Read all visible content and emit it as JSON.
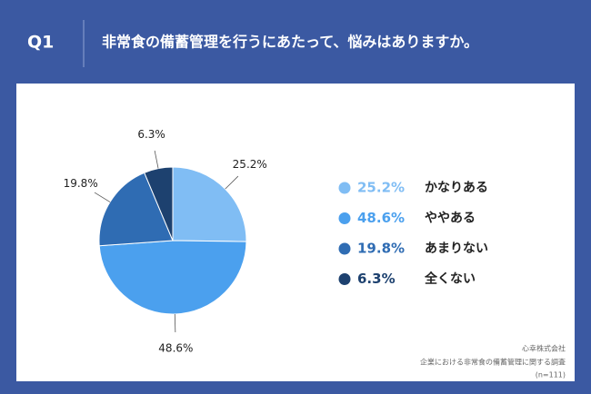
{
  "header": {
    "label": "Q1",
    "title": "非常食の備蓄管理を行うにあたって、悩みはありますか。"
  },
  "chart_data": {
    "type": "pie",
    "categories": [
      "かなりある",
      "ややある",
      "あまりない",
      "全くない"
    ],
    "values": [
      25.2,
      48.6,
      19.8,
      6.3
    ],
    "value_labels": [
      "25.2%",
      "48.6%",
      "19.8%",
      "6.3%"
    ],
    "colors": [
      "#80bdf4",
      "#4ba0ee",
      "#2f6cb3",
      "#1d416f"
    ]
  },
  "footer": {
    "company": "心幸株式会社",
    "survey": "企業における非常食の備蓄管理に関する調査",
    "sample": "(n=111)"
  }
}
